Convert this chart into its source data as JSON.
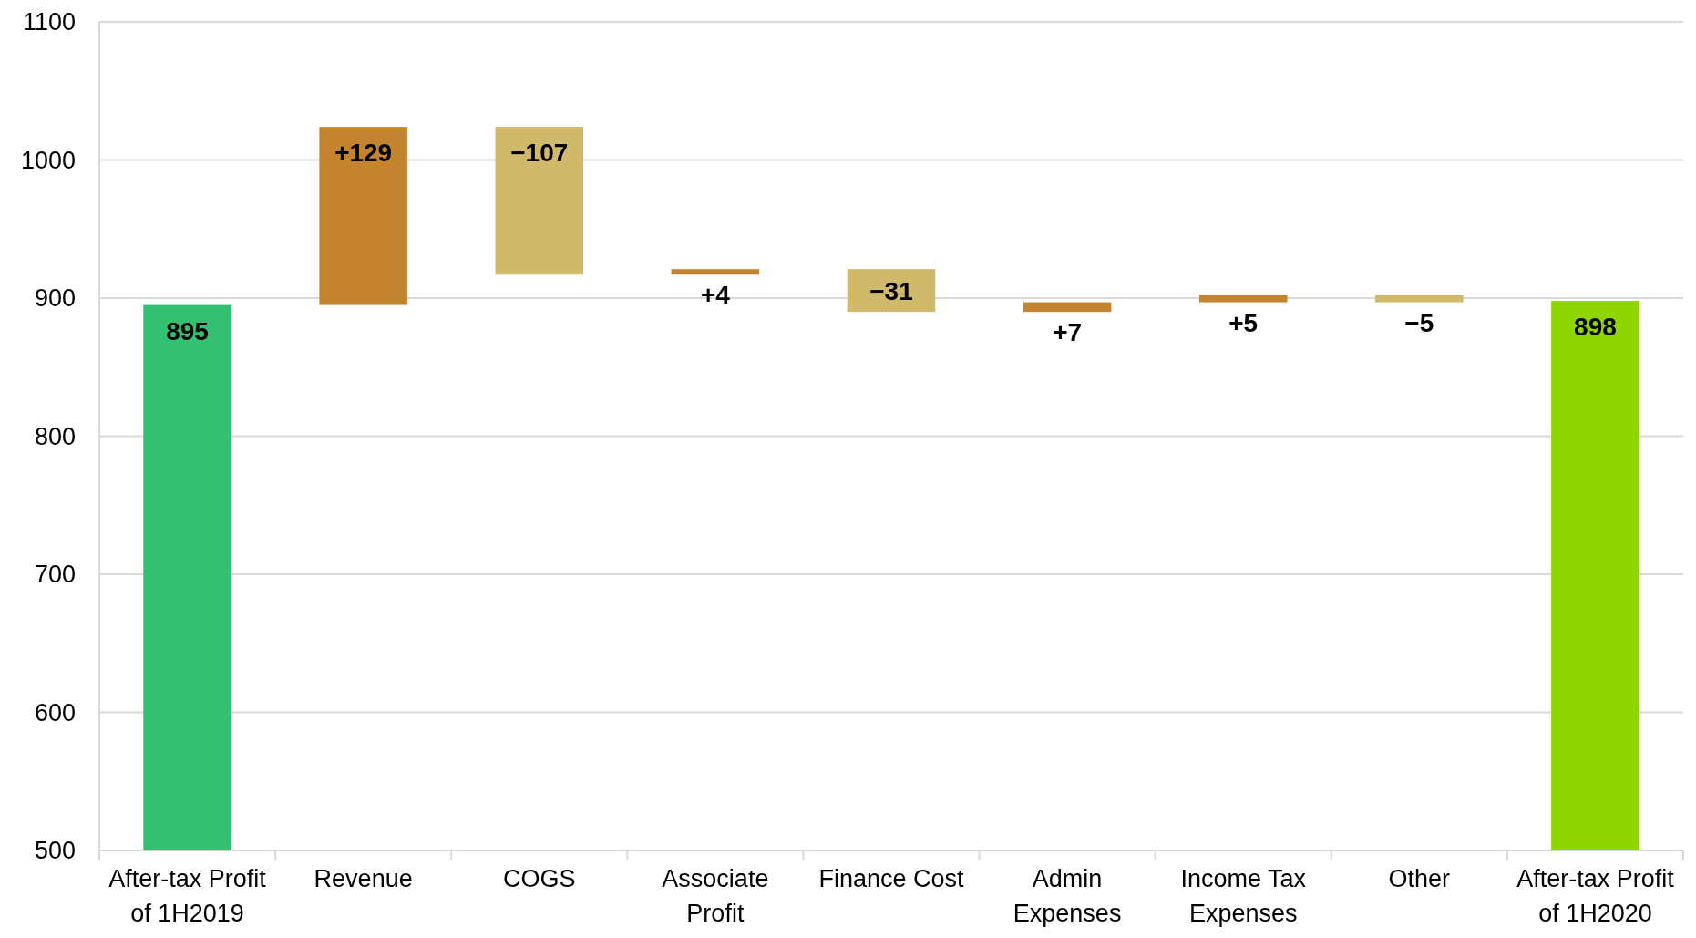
{
  "chart_data": {
    "type": "bar",
    "categories": [
      "After-tax Profit of 1H2019",
      "Revenue",
      "COGS",
      "Associate Profit",
      "Finance Cost",
      "Admin Expenses",
      "Income Tax Expenses",
      "Other",
      "After-tax Profit of 1H2020"
    ],
    "values": [
      895,
      129,
      -107,
      4,
      -31,
      7,
      5,
      -5,
      898
    ],
    "base": [
      null,
      895,
      1024,
      917,
      921,
      890,
      897,
      902,
      null
    ],
    "colors": [
      "#33c072",
      "#c4842f",
      "#d0b96a",
      "#c4842f",
      "#d0b96a",
      "#c4842f",
      "#c4842f",
      "#d0b96a",
      "#8fd600"
    ],
    "value_labels": [
      "895",
      "+129",
      "−107",
      "+4",
      "−31",
      "+7",
      "+5",
      "−5",
      "898"
    ],
    "ylim": [
      500,
      1100
    ],
    "yticks": [
      500,
      600,
      700,
      800,
      900,
      1000,
      1100
    ],
    "grid": "y"
  }
}
